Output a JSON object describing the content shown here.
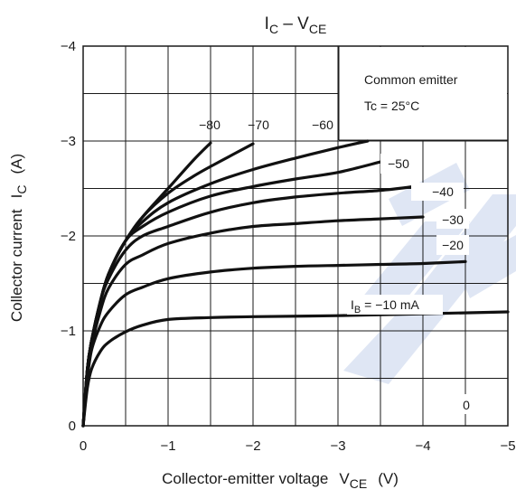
{
  "chart_data": {
    "type": "line",
    "title": "I_C – V_CE",
    "title_main": "I",
    "title_main_sub": "C",
    "title_sep": " – V",
    "title_sep_sub": "CE",
    "xlabel": "Collector-emitter voltage",
    "xlabel_symbol": "V",
    "xlabel_symbol_sub": "CE",
    "xlabel_unit": "(V)",
    "ylabel": "Collector current",
    "ylabel_symbol": "I",
    "ylabel_symbol_sub": "C",
    "ylabel_unit": "(A)",
    "xlim": [
      0,
      -5
    ],
    "ylim": [
      0,
      -4
    ],
    "x_ticks": [
      0,
      -1,
      -2,
      -3,
      -4,
      -5
    ],
    "y_ticks": [
      0,
      -1,
      -2,
      -3,
      -4
    ],
    "x_tick_labels": [
      "0",
      "−1",
      "−2",
      "−3",
      "−4",
      "−5"
    ],
    "y_tick_labels": [
      "0",
      "−1",
      "−2",
      "−3",
      "−4"
    ],
    "grid": true,
    "annotations": {
      "condition_1": "Common emitter",
      "condition_2": "Tc = 25°C"
    },
    "series": [
      {
        "name": "−80",
        "x": [
          0,
          -0.05,
          -0.1,
          -0.2,
          -0.3,
          -0.5,
          -0.7,
          -1.0,
          -1.3,
          -1.5
        ],
        "y": [
          0,
          -0.6,
          -0.9,
          -1.3,
          -1.6,
          -1.95,
          -2.2,
          -2.5,
          -2.8,
          -2.98
        ]
      },
      {
        "name": "−70",
        "x": [
          0,
          -0.05,
          -0.1,
          -0.2,
          -0.3,
          -0.5,
          -0.7,
          -1.0,
          -1.3,
          -1.6,
          -2.0
        ],
        "y": [
          0,
          -0.6,
          -0.9,
          -1.3,
          -1.6,
          -1.95,
          -2.2,
          -2.45,
          -2.63,
          -2.78,
          -2.97
        ]
      },
      {
        "name": "−60",
        "x": [
          0,
          -0.05,
          -0.1,
          -0.2,
          -0.3,
          -0.5,
          -0.7,
          -1.0,
          -1.5,
          -2.0,
          -2.5,
          -3.0,
          -3.35
        ],
        "y": [
          0,
          -0.6,
          -0.9,
          -1.3,
          -1.6,
          -1.95,
          -2.15,
          -2.35,
          -2.55,
          -2.7,
          -2.82,
          -2.93,
          -3.0
        ]
      },
      {
        "name": "−50",
        "x": [
          0,
          -0.05,
          -0.1,
          -0.2,
          -0.3,
          -0.5,
          -0.7,
          -1.0,
          -1.5,
          -2.0,
          -2.5,
          -3.0,
          -3.5
        ],
        "y": [
          0,
          -0.6,
          -0.9,
          -1.3,
          -1.6,
          -1.95,
          -2.1,
          -2.25,
          -2.42,
          -2.52,
          -2.6,
          -2.67,
          -2.78
        ]
      },
      {
        "name": "−40",
        "x": [
          0,
          -0.05,
          -0.1,
          -0.2,
          -0.3,
          -0.5,
          -0.7,
          -1.0,
          -1.5,
          -2.0,
          -2.5,
          -3.0,
          -3.5,
          -3.9
        ],
        "y": [
          0,
          -0.6,
          -0.9,
          -1.3,
          -1.55,
          -1.85,
          -2.0,
          -2.1,
          -2.25,
          -2.35,
          -2.41,
          -2.45,
          -2.48,
          -2.52
        ]
      },
      {
        "name": "−30",
        "x": [
          0,
          -0.05,
          -0.1,
          -0.2,
          -0.3,
          -0.5,
          -0.7,
          -1.0,
          -1.5,
          -2.0,
          -2.5,
          -3.0,
          -3.5,
          -4.0
        ],
        "y": [
          0,
          -0.55,
          -0.85,
          -1.2,
          -1.45,
          -1.7,
          -1.8,
          -1.92,
          -2.03,
          -2.1,
          -2.13,
          -2.16,
          -2.18,
          -2.2
        ]
      },
      {
        "name": "−20",
        "x": [
          0,
          -0.05,
          -0.1,
          -0.2,
          -0.3,
          -0.5,
          -0.7,
          -1.0,
          -1.5,
          -2.0,
          -2.5,
          -3.0,
          -3.5,
          -4.0,
          -4.5
        ],
        "y": [
          0,
          -0.5,
          -0.8,
          -1.05,
          -1.2,
          -1.38,
          -1.46,
          -1.55,
          -1.62,
          -1.66,
          -1.68,
          -1.69,
          -1.7,
          -1.71,
          -1.73
        ]
      },
      {
        "name": "I_B = −10 mA",
        "x": [
          0,
          -0.05,
          -0.1,
          -0.2,
          -0.3,
          -0.5,
          -0.7,
          -1.0,
          -1.5,
          -2.0,
          -3.0,
          -4.0,
          -5.0
        ],
        "y": [
          0,
          -0.4,
          -0.6,
          -0.78,
          -0.88,
          -0.99,
          -1.06,
          -1.12,
          -1.14,
          -1.15,
          -1.16,
          -1.18,
          -1.2
        ]
      }
    ],
    "curve_labels": {
      "ib80": "−80",
      "ib70": "−70",
      "ib60": "−60",
      "ib50": "−50",
      "ib40": "−40",
      "ib30": "−30",
      "ib20": "−20",
      "ib10_prefix": "I",
      "ib10_sub": "B",
      "ib10_rest": " = −10 mA",
      "ib0": "0"
    }
  }
}
